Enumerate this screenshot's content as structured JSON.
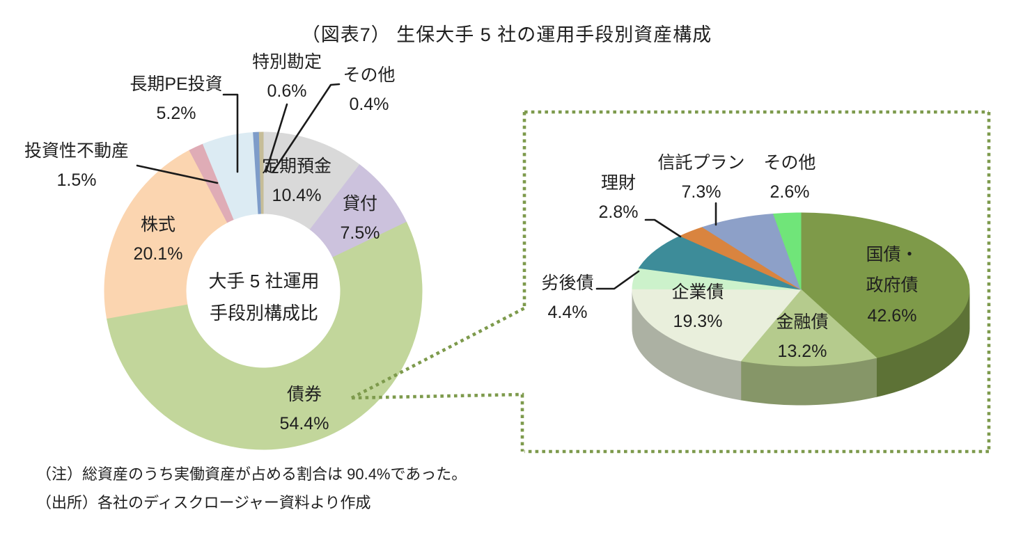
{
  "title": "（図表7） 生保大手 5 社の運用手段別資産構成",
  "notes": {
    "note": "（注）総資産のうち実働資産が占める割合は 90.4%であった。",
    "source": "（出所）各社のディスクロージャー資料より作成"
  },
  "colors": {
    "leader_line": "#1a1a1a",
    "callout_dotted_green": "#7d9a4c",
    "text": "#1f1f1f",
    "background": "#ffffff"
  },
  "chart_data": [
    {
      "type": "pie",
      "subtype": "donut",
      "unit": "%",
      "start_angle_deg": 0,
      "direction": "clockwise",
      "center_label": [
        "大手 5 社運用",
        "手段別構成比"
      ],
      "slices": [
        {
          "label": "定期預金",
          "value": 10.4,
          "pct": "10.4%",
          "color": "#d9d9d9"
        },
        {
          "label": "貸付",
          "value": 7.5,
          "pct": "7.5%",
          "color": "#ccc2dd"
        },
        {
          "label": "債券",
          "value": 54.4,
          "pct": "54.4%",
          "color": "#c2d69b"
        },
        {
          "label": "株式",
          "value": 20.1,
          "pct": "20.1%",
          "color": "#fbd5b0"
        },
        {
          "label": "投資性不動産",
          "value": 1.5,
          "pct": "1.5%",
          "color": "#dfacb6"
        },
        {
          "label": "長期PE投資",
          "value": 5.2,
          "pct": "5.2%",
          "color": "#dcebf3"
        },
        {
          "label": "特別勘定",
          "value": 0.6,
          "pct": "0.6%",
          "color": "#7e9cc9"
        },
        {
          "label": "その他",
          "value": 0.4,
          "pct": "0.4%",
          "color": "#c6bd98"
        }
      ]
    },
    {
      "type": "pie",
      "subtype": "pie3d",
      "unit": "%",
      "start_angle_deg": 0,
      "direction": "clockwise",
      "slices": [
        {
          "label": "国債・政府債",
          "label_lines": [
            "国債・",
            "政府債"
          ],
          "value": 42.6,
          "pct": "42.6%",
          "color": "#7e9a49"
        },
        {
          "label": "金融債",
          "value": 13.2,
          "pct": "13.2%",
          "color": "#b5cb8d"
        },
        {
          "label": "企業債",
          "value": 19.3,
          "pct": "19.3%",
          "color": "#e9efdc"
        },
        {
          "label": "劣後債",
          "value": 4.4,
          "pct": "4.4%",
          "color": "#ccf2cb"
        },
        {
          "label": "",
          "value": 7.8,
          "pct": "",
          "color": "#3d8c99"
        },
        {
          "label": "理財",
          "value": 2.8,
          "pct": "2.8%",
          "color": "#d9843f"
        },
        {
          "label": "信託プラン",
          "value": 7.3,
          "pct": "7.3%",
          "color": "#8da0c8"
        },
        {
          "label": "その他",
          "value": 2.6,
          "pct": "2.6%",
          "color": "#70e579"
        }
      ]
    }
  ]
}
